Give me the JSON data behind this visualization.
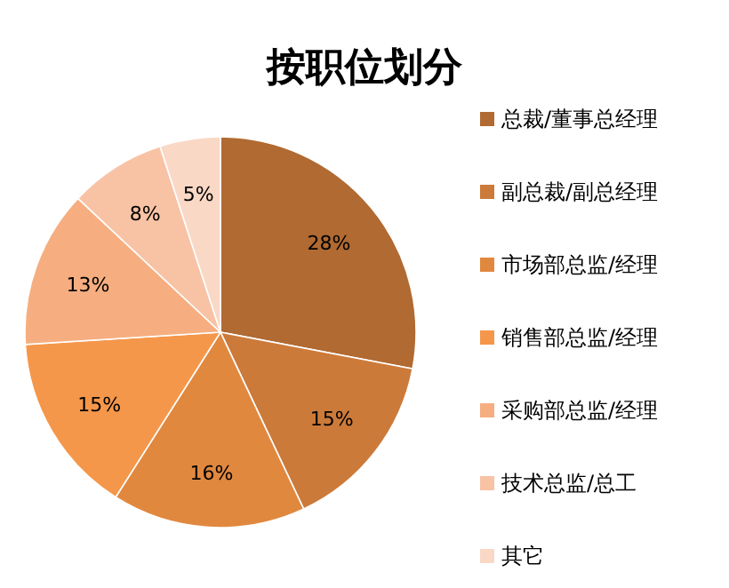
{
  "chart_data": {
    "type": "pie",
    "title": "按职位划分",
    "categories": [
      "总裁/董事总经理",
      "副总裁/副总经理",
      "市场部总监/经理",
      "销售部总监/经理",
      "采购部总监/经理",
      "技术总监/总工",
      "其它"
    ],
    "values": [
      28,
      15,
      16,
      15,
      13,
      8,
      5
    ],
    "colors": [
      "#b06a32",
      "#cc7a3a",
      "#e1883f",
      "#f5974a",
      "#f6ae80",
      "#f8c3a5",
      "#fad8c6"
    ],
    "value_labels": [
      "28%",
      "15%",
      "16%",
      "15%",
      "13%",
      "8%",
      "5%"
    ],
    "legend": "right"
  }
}
